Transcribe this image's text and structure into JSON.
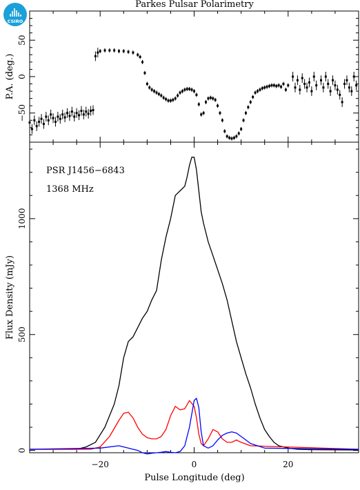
{
  "title": "Parkes Pulsar Polarimetry",
  "logo": {
    "text": "CSIRO",
    "color": "#1ba0d8"
  },
  "chart_data": [
    {
      "type": "scatter",
      "panel": "top",
      "ylabel": "P.A. (deg.)",
      "xlim": [
        -35,
        35
      ],
      "ylim": [
        -90,
        90
      ],
      "yticks": [
        -50,
        0,
        50
      ],
      "xticks": [
        -20,
        0,
        20
      ],
      "series": [
        {
          "color": "#000000",
          "error_bars": true,
          "points": [
            [
              -35.0,
              -63
            ],
            [
              -34.5,
              -72
            ],
            [
              -34.0,
              -60
            ],
            [
              -33.5,
              -68
            ],
            [
              -33.0,
              -62
            ],
            [
              -32.5,
              -58
            ],
            [
              -32.0,
              -65
            ],
            [
              -31.5,
              -55
            ],
            [
              -31.0,
              -60
            ],
            [
              -30.5,
              -52
            ],
            [
              -30.0,
              -57
            ],
            [
              -29.5,
              -62
            ],
            [
              -29.0,
              -55
            ],
            [
              -28.5,
              -58
            ],
            [
              -28.0,
              -52
            ],
            [
              -27.5,
              -56
            ],
            [
              -27.0,
              -50
            ],
            [
              -26.5,
              -54
            ],
            [
              -26.0,
              -48
            ],
            [
              -25.5,
              -55
            ],
            [
              -25.0,
              -50
            ],
            [
              -24.5,
              -53
            ],
            [
              -24.0,
              -47
            ],
            [
              -23.5,
              -52
            ],
            [
              -23.0,
              -48
            ],
            [
              -22.5,
              -51
            ],
            [
              -22.0,
              -47
            ],
            [
              -21.5,
              -46
            ],
            [
              -21.0,
              28
            ],
            [
              -20.5,
              33
            ],
            [
              -20.0,
              35
            ],
            [
              -19.0,
              36
            ],
            [
              -18.0,
              36
            ],
            [
              -17.0,
              36
            ],
            [
              -16.0,
              35
            ],
            [
              -15.0,
              35
            ],
            [
              -14.0,
              34
            ],
            [
              -13.0,
              33
            ],
            [
              -12.0,
              30
            ],
            [
              -11.5,
              27
            ],
            [
              -11.0,
              20
            ],
            [
              -10.5,
              5
            ],
            [
              -10.0,
              -10
            ],
            [
              -9.5,
              -15
            ],
            [
              -9.0,
              -18
            ],
            [
              -8.5,
              -20
            ],
            [
              -8.0,
              -22
            ],
            [
              -7.5,
              -24
            ],
            [
              -7.0,
              -26
            ],
            [
              -6.5,
              -29
            ],
            [
              -6.0,
              -31
            ],
            [
              -5.5,
              -33
            ],
            [
              -5.0,
              -33
            ],
            [
              -4.5,
              -32
            ],
            [
              -4.0,
              -30
            ],
            [
              -3.5,
              -26
            ],
            [
              -3.0,
              -22
            ],
            [
              -2.5,
              -20
            ],
            [
              -2.0,
              -18
            ],
            [
              -1.5,
              -17
            ],
            [
              -1.0,
              -17
            ],
            [
              -0.5,
              -18
            ],
            [
              0.0,
              -20
            ],
            [
              0.5,
              -25
            ],
            [
              1.0,
              -38
            ],
            [
              1.5,
              -52
            ],
            [
              2.0,
              -50
            ],
            [
              2.5,
              -35
            ],
            [
              3.0,
              -30
            ],
            [
              3.5,
              -29
            ],
            [
              4.0,
              -30
            ],
            [
              4.5,
              -32
            ],
            [
              5.0,
              -40
            ],
            [
              5.5,
              -50
            ],
            [
              6.0,
              -60
            ],
            [
              6.5,
              -75
            ],
            [
              7.0,
              -82
            ],
            [
              7.5,
              -84
            ],
            [
              8.0,
              -85
            ],
            [
              8.5,
              -84
            ],
            [
              9.0,
              -82
            ],
            [
              9.5,
              -78
            ],
            [
              10.0,
              -72
            ],
            [
              10.5,
              -60
            ],
            [
              11.0,
              -50
            ],
            [
              11.5,
              -42
            ],
            [
              12.0,
              -35
            ],
            [
              12.5,
              -28
            ],
            [
              13.0,
              -22
            ],
            [
              13.5,
              -20
            ],
            [
              14.0,
              -18
            ],
            [
              14.5,
              -16
            ],
            [
              15.0,
              -15
            ],
            [
              15.5,
              -14
            ],
            [
              16.0,
              -13
            ],
            [
              16.5,
              -12
            ],
            [
              17.0,
              -12
            ],
            [
              17.5,
              -13
            ],
            [
              18.0,
              -12
            ],
            [
              18.5,
              -14
            ],
            [
              19.0,
              -10
            ],
            [
              19.5,
              -18
            ],
            [
              20.0,
              -12
            ],
            [
              21.0,
              0
            ],
            [
              21.5,
              -15
            ],
            [
              22.0,
              -5
            ],
            [
              22.5,
              -18
            ],
            [
              23.0,
              -2
            ],
            [
              23.5,
              -10
            ],
            [
              24.0,
              -15
            ],
            [
              24.5,
              -8
            ],
            [
              25.0,
              -20
            ],
            [
              25.5,
              0
            ],
            [
              26.0,
              -12
            ],
            [
              27.0,
              -5
            ],
            [
              27.5,
              -15
            ],
            [
              28.0,
              0
            ],
            [
              28.5,
              -10
            ],
            [
              29.0,
              -20
            ],
            [
              29.5,
              -5
            ],
            [
              30.0,
              -12
            ],
            [
              30.5,
              -18
            ],
            [
              31.0,
              -25
            ],
            [
              31.5,
              -35
            ],
            [
              32.0,
              -10
            ],
            [
              32.5,
              -5
            ],
            [
              33.0,
              -15
            ],
            [
              33.5,
              -20
            ],
            [
              34.0,
              0
            ],
            [
              34.5,
              -12
            ]
          ]
        }
      ]
    },
    {
      "type": "line",
      "panel": "bottom",
      "xlabel": "Pulse Longitude (deg)",
      "ylabel": "Flux Density (mJy)",
      "xlim": [
        -35,
        35
      ],
      "ylim": [
        -10,
        1330
      ],
      "yticks": [
        0,
        500,
        1000
      ],
      "xticks": [
        -20,
        0,
        20
      ],
      "annotations": [
        "PSR J1456−6843",
        "1368 MHz"
      ],
      "series": [
        {
          "color": "#000000",
          "x": [
            -35,
            -25,
            -23,
            -21,
            -19,
            -17,
            -16,
            -15,
            -14,
            -13,
            -12,
            -11,
            -10,
            -9,
            -8,
            -7,
            -6,
            -5,
            -4,
            -3,
            -2,
            -1.5,
            -1,
            -0.5,
            0,
            0.5,
            1,
            1.5,
            2,
            3,
            4,
            5,
            6,
            7,
            8,
            9,
            10,
            11,
            12,
            13,
            14,
            15,
            16,
            17,
            18,
            20,
            22,
            25,
            35
          ],
          "y": [
            5,
            5,
            15,
            35,
            100,
            200,
            280,
            400,
            470,
            490,
            530,
            570,
            600,
            650,
            690,
            820,
            920,
            1000,
            1100,
            1120,
            1140,
            1180,
            1230,
            1265,
            1265,
            1210,
            1120,
            1030,
            980,
            900,
            840,
            780,
            720,
            650,
            560,
            470,
            400,
            330,
            270,
            200,
            140,
            90,
            60,
            35,
            20,
            10,
            5,
            3,
            2
          ]
        },
        {
          "color": "#ff0000",
          "x": [
            -35,
            -25,
            -22,
            -20,
            -18,
            -16,
            -15,
            -14,
            -13,
            -12,
            -11,
            -10,
            -9,
            -8,
            -7,
            -6,
            -5,
            -4,
            -3,
            -2,
            -1,
            0,
            0.5,
            1,
            1.5,
            2,
            3,
            4,
            5,
            6,
            7,
            8,
            9,
            10,
            12,
            35
          ],
          "y": [
            5,
            5,
            5,
            15,
            60,
            130,
            160,
            165,
            140,
            100,
            70,
            55,
            50,
            50,
            60,
            90,
            150,
            190,
            175,
            180,
            215,
            190,
            140,
            70,
            30,
            20,
            50,
            90,
            80,
            50,
            35,
            35,
            45,
            35,
            20,
            5
          ]
        },
        {
          "color": "#0000ff",
          "x": [
            -35,
            -20,
            -16,
            -15,
            -14,
            -13,
            -12,
            -11,
            -10,
            -9,
            -8,
            -7,
            -6,
            -5,
            -4,
            -3,
            -2,
            -1,
            0,
            0.5,
            1,
            1.5,
            2,
            3,
            4,
            5,
            6,
            7,
            8,
            9,
            10,
            11,
            12,
            15,
            35
          ],
          "y": [
            5,
            10,
            20,
            15,
            10,
            5,
            0,
            -10,
            -15,
            -12,
            -10,
            -8,
            -5,
            -8,
            -10,
            -5,
            20,
            100,
            215,
            225,
            185,
            80,
            20,
            10,
            20,
            45,
            65,
            75,
            80,
            75,
            60,
            45,
            30,
            10,
            5
          ]
        }
      ]
    }
  ]
}
